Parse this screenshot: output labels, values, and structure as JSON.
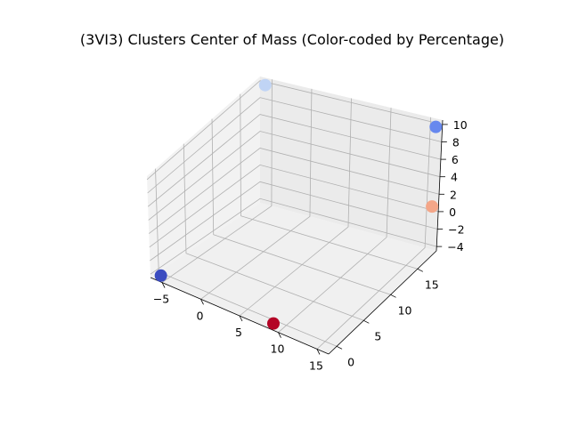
{
  "chart_data": {
    "type": "scatter",
    "projection": "3d",
    "title": "(3VI3) Clusters Center of Mass (Color-coded by Percentage)",
    "xlabel": "",
    "ylabel": "",
    "zlabel": "",
    "x_ticks": [
      "−5",
      "0",
      "5",
      "10",
      "15"
    ],
    "y_ticks": [
      "0",
      "5",
      "10",
      "15"
    ],
    "z_ticks": [
      "−4",
      "−2",
      "0",
      "2",
      "4",
      "6",
      "8",
      "10"
    ],
    "grid": true,
    "points": [
      {
        "x": -5.5,
        "y": -1,
        "z": -4,
        "color": "#3b4cc0"
      },
      {
        "x": 9,
        "y": -1,
        "z": -4,
        "color": "#b40426"
      },
      {
        "x": -5.5,
        "y": 18,
        "z": 10,
        "color": "#c0d4f5"
      },
      {
        "x": 16,
        "y": 18,
        "z": 10,
        "color": "#6788ee"
      },
      {
        "x": 16,
        "y": 18,
        "z": 0.8,
        "color": "#f4a688"
      }
    ]
  }
}
